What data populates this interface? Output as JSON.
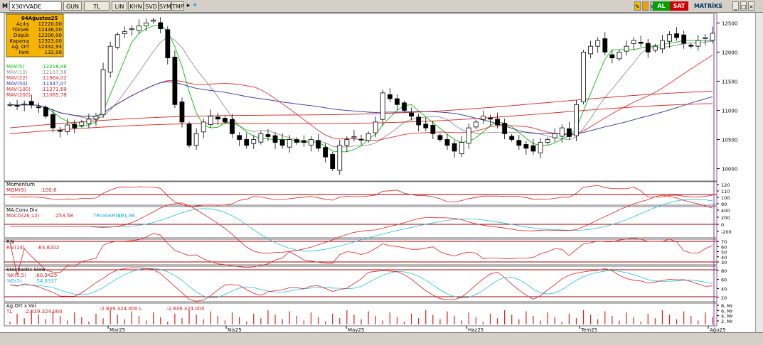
{
  "toolbar": {
    "m_label": "M",
    "symbol": "X30YVADE",
    "period": "GUN",
    "currency": "TL",
    "scale": "LIN",
    "items": [
      "KHN",
      "SVD",
      "SYM",
      "TMP"
    ],
    "buy_label": "AL",
    "sell_label": "SAT",
    "brand": "MATRİKS",
    "colors": {
      "buy": "#00a000",
      "sell": "#d00000"
    }
  },
  "ohlc_box": {
    "date": "04Ağustos25",
    "rows": [
      {
        "label": "Açılış",
        "value": "12220,00"
      },
      {
        "label": "Yüksek",
        "value": "12438,00"
      },
      {
        "label": "Düşük",
        "value": "12200,00"
      },
      {
        "label": "Kapanış",
        "value": "12323,00"
      },
      {
        "label": "Ağ. Ort",
        "value": "12332,93"
      },
      {
        "label": "Fark",
        "value": "132,00"
      }
    ]
  },
  "mav_legend": [
    {
      "name": "MAV(5)",
      "value": ":12218,46",
      "color": "#00c000"
    },
    {
      "name": "MAV(10)",
      "value": ":12167,58",
      "color": "#909090"
    },
    {
      "name": "MAV(22)",
      "value": ":11964,02",
      "color": "#e03030"
    },
    {
      "name": "MAV(50)",
      "value": ":11547,07",
      "color": "#3030a0"
    },
    {
      "name": "MAV(100)",
      "value": ":11271,69",
      "color": "#d02020"
    },
    {
      "name": "MAV(200)",
      "value": ":11065,78",
      "color": "#e02020"
    }
  ],
  "price_axis": [
    "12500",
    "12000",
    "11500",
    "11000",
    "10500",
    "10000"
  ],
  "momentum": {
    "title": "Momentum",
    "label": "MOM(9)",
    "value": ":100,6",
    "axis": [
      "120",
      "110",
      "100",
      "90"
    ]
  },
  "macd": {
    "title": "MA.Conv.Div",
    "label": "MACD(26,12)",
    "value": ":253,58",
    "trigger_label": "TRIGGER(9)",
    "trigger_value": ":291,86",
    "axis": [
      "400",
      "200",
      "0",
      "-200"
    ]
  },
  "rsi": {
    "title": "RSI",
    "label": "RSI(14)",
    "value": ":63,8202",
    "axis": [
      "70",
      "60",
      "50",
      "40",
      "30"
    ]
  },
  "stoch": {
    "title": "Stochastic Slow",
    "k_label": "%K(5,5)",
    "k_value": ":60,9425",
    "d_label": "%D(5)",
    "d_value": ":54,8337",
    "axis": [
      "80",
      "60",
      "40",
      "20"
    ]
  },
  "volume": {
    "title": "Ag.Ort x Vol",
    "label": "TL",
    "value1": ":2.839.324.000",
    "value2": ":2.839.324.000 L",
    "value3": ":2.839.324.000",
    "axis": [
      "8, Mr",
      "6, Mr",
      "4, Mr",
      "2, Mr"
    ]
  },
  "x_axis": [
    "Mar25",
    "Nis25",
    "May25",
    "Haz25",
    "Tem25",
    "Ağu25"
  ],
  "chart_data": {
    "type": "candlestick",
    "x_labels": [
      "Mar25",
      "Nis25",
      "May25",
      "Haz25",
      "Tem25",
      "Ağu25"
    ],
    "ylim": [
      9800,
      12650
    ],
    "close": [
      11100,
      11080,
      11110,
      11090,
      11050,
      10900,
      10700,
      10650,
      10750,
      10700,
      10800,
      10850,
      10900,
      11700,
      12100,
      12300,
      12350,
      12400,
      12450,
      12500,
      12550,
      12400,
      11900,
      11100,
      10800,
      10400,
      10600,
      10800,
      10900,
      10850,
      10800,
      10600,
      10500,
      10400,
      10500,
      10600,
      10550,
      10450,
      10400,
      10500,
      10450,
      10450,
      10500,
      10350,
      10200,
      10000,
      10400,
      10500,
      10550,
      10500,
      10600,
      10800,
      11300,
      11200,
      11100,
      11000,
      10900,
      10750,
      10700,
      10600,
      10500,
      10400,
      10300,
      10450,
      10700,
      10800,
      10900,
      10850,
      10750,
      10600,
      10500,
      10400,
      10350,
      10300,
      10450,
      10500,
      10600,
      10700,
      10550,
      11100,
      12000,
      12100,
      12200,
      12000,
      11900,
      12000,
      12100,
      12200,
      12150,
      12000,
      12100,
      12200,
      12300,
      12250,
      12150,
      12100,
      12200,
      12250,
      12323
    ]
  }
}
